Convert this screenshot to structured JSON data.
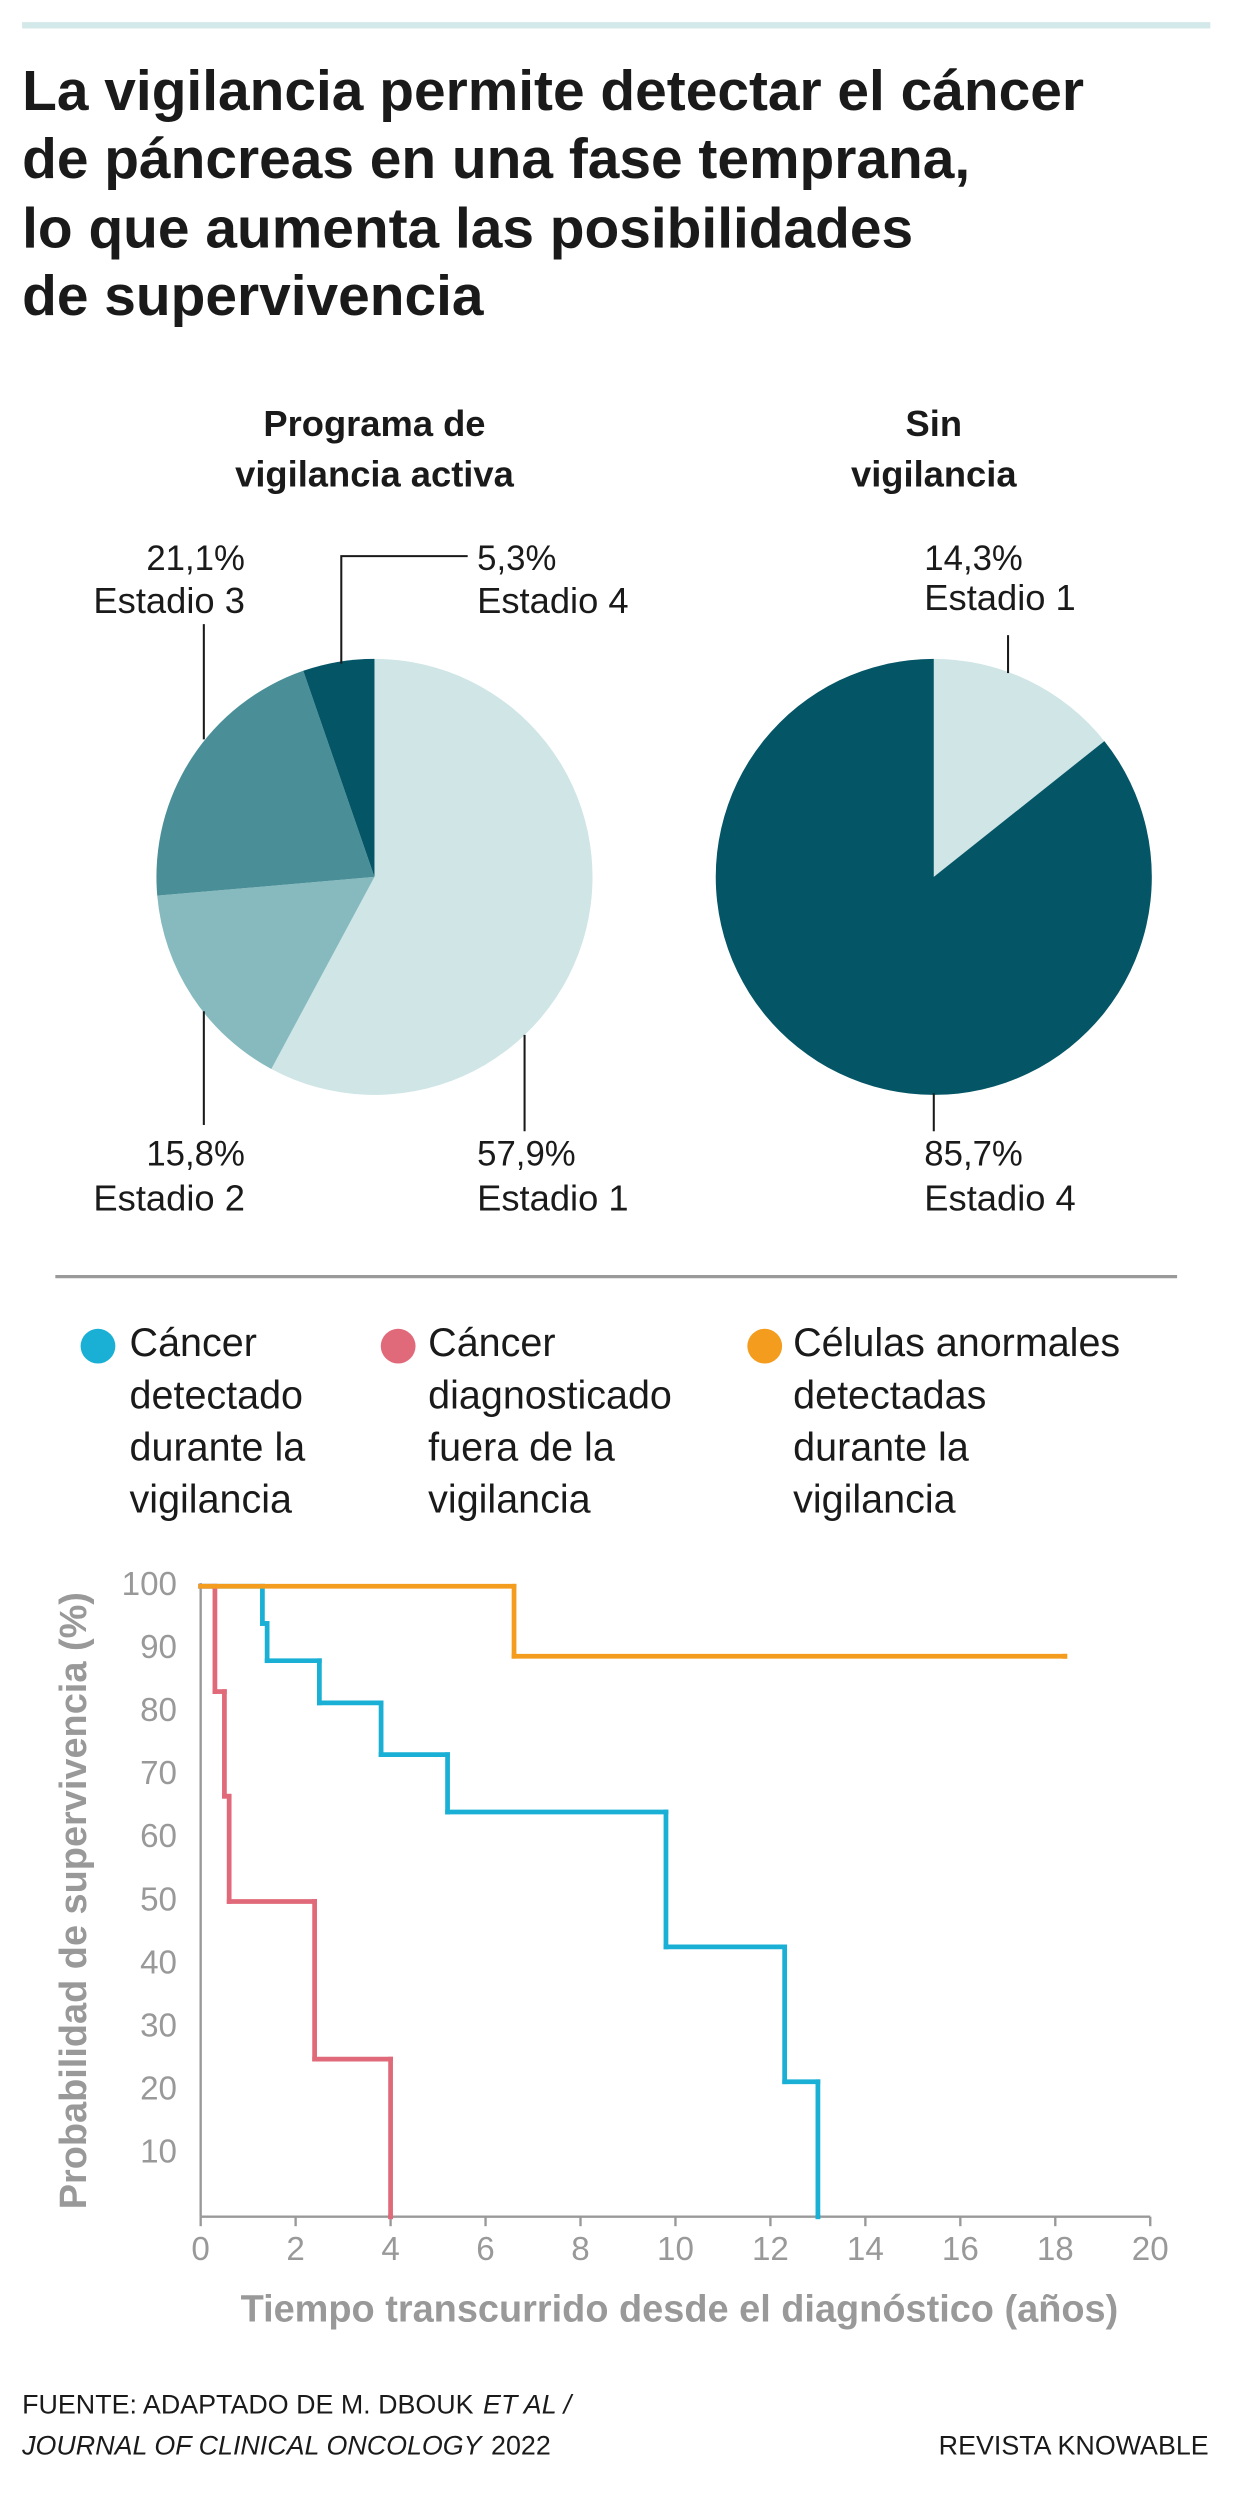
{
  "title": [
    "La vigilancia permite detectar el cáncer",
    "de páncreas en una fase temprana,",
    "lo que aumenta las posibilidades",
    "de supervivencia"
  ],
  "chart_data": [
    {
      "type": "pie",
      "title": [
        "Programa de",
        "vigilancia activa"
      ],
      "categories": [
        "Estadio 1",
        "Estadio 2",
        "Estadio 3",
        "Estadio 4"
      ],
      "values": [
        57.9,
        15.8,
        21.1,
        5.3
      ],
      "value_labels": [
        "57,9%",
        "15,8%",
        "21,1%",
        "5,3%"
      ],
      "colors": [
        "#cfe5e6",
        "#86babe",
        "#4a8f98",
        "#045566"
      ]
    },
    {
      "type": "pie",
      "title": [
        "Sin",
        "vigilancia"
      ],
      "categories": [
        "Estadio 1",
        "Estadio 4"
      ],
      "values": [
        14.3,
        85.7
      ],
      "value_labels": [
        "14,3%",
        "85,7%"
      ],
      "colors": [
        "#cfe5e6",
        "#045566"
      ]
    },
    {
      "type": "step",
      "x_label": "Tiempo transcurrido desde el diagnóstico (años)",
      "y_label": "Probabilidad de supervivencia (%)",
      "xlim": [
        0,
        20
      ],
      "xticks": [
        0,
        2,
        4,
        6,
        8,
        10,
        12,
        14,
        16,
        18,
        20
      ],
      "ylim": [
        0,
        100
      ],
      "yticks": [
        10,
        20,
        30,
        40,
        50,
        60,
        70,
        80,
        90,
        100
      ],
      "series": [
        {
          "name": "Cáncer detectado durante la vigilancia",
          "color": "#1ab0d6",
          "x": [
            0,
            1.3,
            1.4,
            2.5,
            3.8,
            5.2,
            9.8,
            12.3,
            13.0
          ],
          "values": [
            100,
            94.1,
            88.2,
            81.5,
            73.3,
            64.2,
            42.8,
            21.4,
            0
          ]
        },
        {
          "name": "Cáncer diagnosticado fuera de la vigilancia",
          "color": "#e06a7a",
          "x": [
            0,
            0.3,
            0.5,
            0.6,
            2.4,
            4.0
          ],
          "values": [
            100,
            83.3,
            66.7,
            50,
            25,
            0
          ]
        },
        {
          "name": "Células anormales detectadas durante la vigilancia",
          "color": "#f39c1e",
          "x": [
            0,
            6.6,
            18.2
          ],
          "values": [
            100,
            88.9,
            88.9
          ]
        }
      ]
    }
  ],
  "source": {
    "line1": "FUENTE: ADAPTADO DE M. DBOUK",
    "line1_italic": "ET AL /",
    "line2_italic": "JOURNAL OF CLINICAL ONCOLOGY",
    "line2": "2022"
  },
  "credit": "REVISTA KNOWABLE"
}
